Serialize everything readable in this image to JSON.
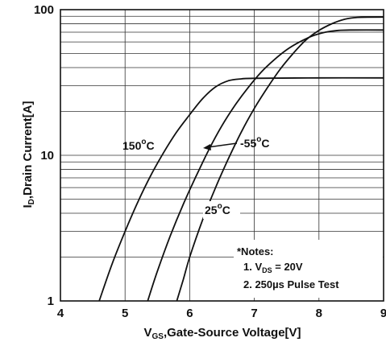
{
  "chart_data": {
    "type": "line",
    "title": "",
    "xlabel": {
      "prefix": "V",
      "sub": "GS",
      "rest": ",Gate-Source Voltage[V]"
    },
    "ylabel": {
      "prefix": "I",
      "sub": "D",
      "rest": ",Drain Current[A]"
    },
    "xlim": [
      4,
      9
    ],
    "ylim": [
      1,
      100
    ],
    "yscale": "log",
    "grid": true,
    "x_ticks": [
      "4",
      "5",
      "6",
      "7",
      "8",
      "9"
    ],
    "y_ticks": [
      {
        "value": 1,
        "label": "1"
      },
      {
        "value": 10,
        "label": "10"
      },
      {
        "value": 100,
        "label": "100"
      }
    ],
    "series": [
      {
        "name": "150°C",
        "label_main": "150",
        "label_sup": "o",
        "label_unit": "C",
        "x": [
          4.6,
          4.8,
          5.0,
          5.2,
          5.4,
          5.6,
          5.8,
          6.0,
          6.2,
          6.4,
          6.6,
          6.8,
          7.0,
          8.0,
          9.0
        ],
        "y": [
          1.0,
          1.8,
          3.0,
          4.8,
          7.3,
          10.5,
          14.5,
          19.0,
          24.5,
          29.5,
          32.5,
          33.5,
          33.8,
          34.0,
          34.0
        ]
      },
      {
        "name": "-55°C",
        "label_main": "-55",
        "label_sup": "o",
        "label_unit": "C",
        "x": [
          5.35,
          5.5,
          5.7,
          5.9,
          6.1,
          6.3,
          6.5,
          6.7,
          6.9,
          7.1,
          7.3,
          7.5,
          7.7,
          7.9,
          8.1,
          8.3,
          8.5,
          9.0
        ],
        "y": [
          1.0,
          1.6,
          2.8,
          4.6,
          7.2,
          11.0,
          16.0,
          22.0,
          29.0,
          37.0,
          45.0,
          53.0,
          60.0,
          66.0,
          70.0,
          72.0,
          72.5,
          72.5
        ]
      },
      {
        "name": "25°C",
        "label_main": "25",
        "label_sup": "o",
        "label_unit": "C",
        "x": [
          5.8,
          5.9,
          6.0,
          6.2,
          6.4,
          6.6,
          6.8,
          7.0,
          7.2,
          7.4,
          7.6,
          7.8,
          8.0,
          8.2,
          8.4,
          8.6,
          9.0
        ],
        "y": [
          1.0,
          1.4,
          2.0,
          3.6,
          6.0,
          9.5,
          14.5,
          21.0,
          29.0,
          39.0,
          50.0,
          62.0,
          72.0,
          80.0,
          86.0,
          88.5,
          89.0
        ]
      }
    ],
    "notes": {
      "heading": "*Notes:",
      "line1": {
        "prefix": "1. V",
        "sub": "DS",
        "rest": " = 20V"
      },
      "line2": "2. 250µs Pulse Test"
    }
  }
}
